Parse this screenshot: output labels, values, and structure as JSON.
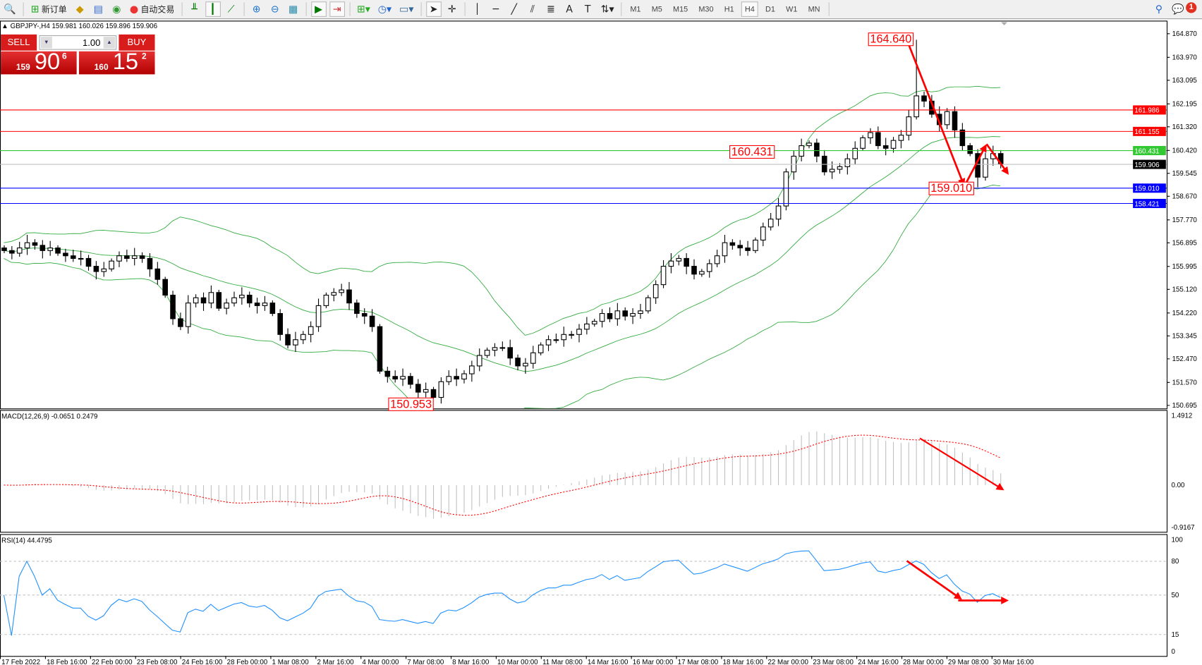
{
  "toolbar": {
    "new_order": "新订单",
    "auto_trading": "自动交易",
    "timeframes": [
      "M1",
      "M5",
      "M15",
      "M30",
      "H1",
      "H4",
      "D1",
      "W1",
      "MN"
    ],
    "active_timeframe": "H4",
    "notification_count": "1"
  },
  "chart_info": "GBPJPY-,H4  159.981 160.026 159.896 159.906",
  "trade_panel": {
    "sell_label": "SELL",
    "buy_label": "BUY",
    "lot": "1.00",
    "sell_big": "159",
    "sell_main": "90",
    "sell_pip": "6",
    "buy_big": "160",
    "buy_main": "15",
    "buy_pip": "2"
  },
  "colors": {
    "bull": "#ffffff",
    "bear": "#000000",
    "bands": "#2eaa3c",
    "macd_hist": "#c0c0c0",
    "macd_signal": "#ff0000",
    "rsi": "#1e90ff",
    "arrow": "#ff0000"
  },
  "chart_data": [
    {
      "type": "candlestick",
      "symbol": "GBPJPY-",
      "timeframe": "H4",
      "indicators": [
        "Bollinger Bands(20,2)"
      ],
      "y_ticks": [
        "164.870",
        "163.970",
        "163.095",
        "162.195",
        "161.320",
        "160.420",
        "159.545",
        "158.670",
        "157.770",
        "156.895",
        "155.995",
        "155.120",
        "154.220",
        "153.345",
        "152.470",
        "151.570",
        "150.695"
      ],
      "ylim": [
        150.695,
        164.87
      ],
      "closes": [
        156.6,
        156.5,
        156.7,
        156.9,
        156.8,
        156.6,
        156.7,
        156.5,
        156.4,
        156.3,
        156.3,
        156.0,
        155.8,
        155.9,
        156.2,
        156.4,
        156.3,
        156.4,
        156.3,
        155.9,
        155.5,
        154.9,
        154.0,
        153.7,
        154.6,
        154.8,
        154.6,
        155.0,
        154.4,
        154.6,
        154.8,
        154.9,
        154.6,
        154.5,
        154.6,
        154.2,
        153.4,
        153.0,
        153.2,
        153.4,
        153.7,
        154.5,
        154.9,
        155.0,
        155.1,
        154.6,
        154.2,
        154.1,
        153.7,
        152.0,
        151.8,
        151.7,
        151.8,
        151.5,
        151.2,
        151.3,
        151.0,
        151.6,
        151.8,
        151.7,
        151.9,
        152.2,
        152.6,
        152.8,
        152.9,
        152.9,
        152.5,
        152.2,
        152.3,
        152.7,
        153.0,
        153.2,
        153.2,
        153.4,
        153.4,
        153.6,
        153.8,
        153.9,
        154.2,
        154.0,
        154.3,
        154.1,
        154.2,
        154.3,
        154.8,
        155.3,
        156.0,
        156.2,
        156.3,
        156.0,
        155.7,
        155.8,
        156.1,
        156.4,
        156.9,
        156.8,
        156.7,
        156.6,
        157.0,
        157.5,
        157.8,
        158.3,
        159.6,
        160.2,
        160.6,
        160.7,
        160.2,
        159.6,
        159.7,
        159.8,
        160.1,
        160.5,
        160.9,
        161.1,
        160.6,
        160.5,
        160.8,
        161.0,
        161.7,
        162.5,
        162.3,
        161.8,
        161.4,
        161.9,
        161.2,
        160.6,
        160.3,
        159.4,
        160.1,
        160.3,
        159.9
      ],
      "extremes": [
        {
          "bar": 119,
          "kind": "high",
          "price": 164.64,
          "label": "164.640"
        },
        {
          "bar": 56,
          "kind": "low",
          "price": 150.953,
          "label": "150.953"
        },
        {
          "bar": 127,
          "kind": "low",
          "price": 159.01,
          "label": "159.010"
        }
      ],
      "line_label": {
        "price": 160.431,
        "label": "160.431"
      },
      "hlines": [
        {
          "price": 161.986,
          "label": "161.986",
          "color": "#ff0000"
        },
        {
          "price": 161.155,
          "label": "161.155",
          "color": "#ff0000"
        },
        {
          "price": 160.431,
          "label": "160.431",
          "color": "#32c832"
        },
        {
          "price": 159.906,
          "label": "159.906",
          "color": "#c0c0c0",
          "tag": "#000000"
        },
        {
          "price": 159.01,
          "label": "159.010",
          "color": "#0000ff"
        },
        {
          "price": 158.421,
          "label": "158.421",
          "color": "#0000ff"
        }
      ],
      "arrows": [
        [
          [
            117.8,
            164.64
          ],
          [
            125.3,
            159.05
          ]
        ],
        [
          [
            125.3,
            159.05
          ],
          [
            128.2,
            160.66
          ]
        ],
        [
          [
            128.2,
            160.66
          ],
          [
            131.1,
            159.49
          ]
        ]
      ]
    },
    {
      "type": "macd",
      "label": "MACD(12,26,9) -0.0651 0.2479",
      "y_ticks": [
        "1.4912",
        "0.00",
        "-0.9167"
      ],
      "ylim": [
        -0.9167,
        1.4912
      ],
      "arrows": [
        [
          [
            119.5,
            0.99
          ],
          [
            130.5,
            -0.11
          ]
        ]
      ]
    },
    {
      "type": "rsi",
      "label": "RSI(14) 44.4795",
      "y_ticks": [
        "100",
        "80",
        "50",
        "15",
        "0"
      ],
      "levels": [
        80,
        50,
        15
      ],
      "ylim": [
        0,
        100
      ],
      "arrows": [
        [
          [
            117.8,
            80.3
          ],
          [
            125.0,
            46.0
          ]
        ],
        [
          [
            124.5,
            45.2
          ],
          [
            131.1,
            45.2
          ]
        ]
      ]
    }
  ],
  "time_axis": [
    "17 Feb 2022",
    "18 Feb 16:00",
    "22 Feb 00:00",
    "23 Feb 08:00",
    "24 Feb 16:00",
    "28 Feb 00:00",
    "1 Mar 08:00",
    "2 Mar 16:00",
    "4 Mar 00:00",
    "7 Mar 08:00",
    "8 Mar 16:00",
    "10 Mar 00:00",
    "11 Mar 08:00",
    "14 Mar 16:00",
    "16 Mar 00:00",
    "17 Mar 08:00",
    "18 Mar 16:00",
    "22 Mar 00:00",
    "23 Mar 08:00",
    "24 Mar 16:00",
    "28 Mar 00:00",
    "29 Mar 08:00",
    "30 Mar 16:00"
  ]
}
